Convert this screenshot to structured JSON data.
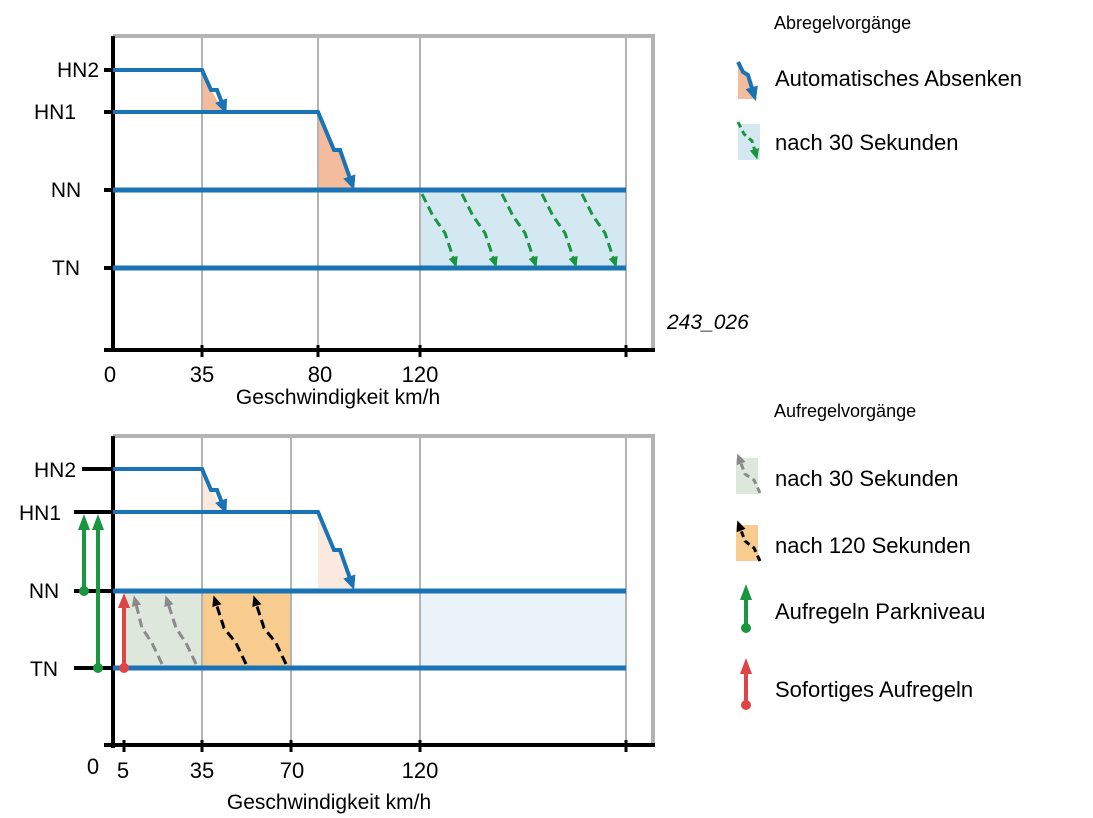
{
  "colors": {
    "level_line": "#1a73b5",
    "axis": "#000000",
    "frame": "#b3b3b3",
    "auto_fill": "#f4bc9c",
    "auto_fill_light": "#fbe8de",
    "timer30_fill": "#d3e8f1",
    "timer30_fill_light": "#eaf3f9",
    "green_arrow": "#1a9641",
    "up30_fill": "#dde7dc",
    "up30_arrow": "#8a8a8a",
    "up120_fill": "#f7cc8e",
    "up120_arrow": "#000000",
    "red_arrow": "#e04545"
  },
  "top_diagram": {
    "levels": [
      "HN2",
      "HN1",
      "NN",
      "TN"
    ],
    "x_ticks": [
      "0",
      "35",
      "80",
      "120"
    ],
    "xlabel": "Geschwindigkeit km/h",
    "figure_id": "243_026"
  },
  "bottom_diagram": {
    "levels": [
      "HN2",
      "HN1",
      "NN",
      "TN"
    ],
    "x_ticks": [
      "0",
      "5",
      "35",
      "70",
      "120"
    ],
    "xlabel": "Geschwindigkeit km/h"
  },
  "legend_top": {
    "title": "Abregelvorgänge",
    "items": [
      {
        "label": "Automatisches Absenken",
        "icon": "auto-lower-icon"
      },
      {
        "label": "nach 30 Sekunden",
        "icon": "timer-lower-icon"
      }
    ]
  },
  "legend_bottom": {
    "title": "Aufregelvorgänge",
    "items": [
      {
        "label": "nach 30 Sekunden",
        "icon": "raise-30s-icon"
      },
      {
        "label": "nach 120 Sekunden",
        "icon": "raise-120s-icon"
      },
      {
        "label": "Aufregeln Parkniveau",
        "icon": "park-raise-icon"
      },
      {
        "label": "Sofortiges Aufregeln",
        "icon": "instant-raise-icon"
      }
    ]
  }
}
